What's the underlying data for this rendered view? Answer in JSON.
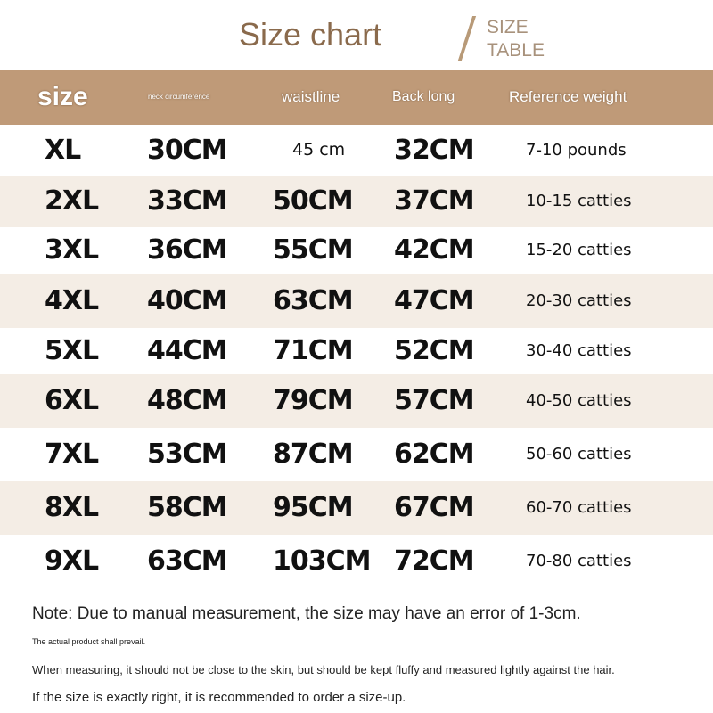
{
  "title": "Size chart",
  "subtitle_line1": "SIZE",
  "subtitle_line2": "TABLE",
  "headers": [
    "size",
    "neck circumference",
    "waistline",
    "Back long",
    "Reference weight"
  ],
  "rows": [
    {
      "size": "XL",
      "neck": "30CM",
      "waist": "45 cm",
      "back": "32CM",
      "weight": "7-10 pounds"
    },
    {
      "size": "2XL",
      "neck": "33CM",
      "waist": "50CM",
      "back": "37CM",
      "weight": "10-15 catties"
    },
    {
      "size": "3XL",
      "neck": "36CM",
      "waist": "55CM",
      "back": "42CM",
      "weight": "15-20 catties"
    },
    {
      "size": "4XL",
      "neck": "40CM",
      "waist": "63CM",
      "back": "47CM",
      "weight": "20-30 catties"
    },
    {
      "size": "5XL",
      "neck": "44CM",
      "waist": "71CM",
      "back": "52CM",
      "weight": "30-40 catties"
    },
    {
      "size": "6XL",
      "neck": "48CM",
      "waist": "79CM",
      "back": "57CM",
      "weight": "40-50 catties"
    },
    {
      "size": "7XL",
      "neck": "53CM",
      "waist": "87CM",
      "back": "62CM",
      "weight": "50-60 catties"
    },
    {
      "size": "8XL",
      "neck": "58CM",
      "waist": "95CM",
      "back": "67CM",
      "weight": "60-70 catties"
    },
    {
      "size": "9XL",
      "neck": "63CM",
      "waist": "103CM",
      "back": "72CM",
      "weight": "70-80 catties"
    }
  ],
  "notes": [
    "Note: Due to manual measurement, the size may have an error of 1-3cm.",
    "The actual product shall prevail.",
    "When measuring, it should not be close to the skin, but should be kept fluffy and measured lightly against the hair.",
    "If the size is exactly right, it is recommended to order a size-up."
  ],
  "colors": {
    "header": "#bf9a78",
    "title": "#8a6a4c",
    "alt_row": "#f4ede5"
  }
}
